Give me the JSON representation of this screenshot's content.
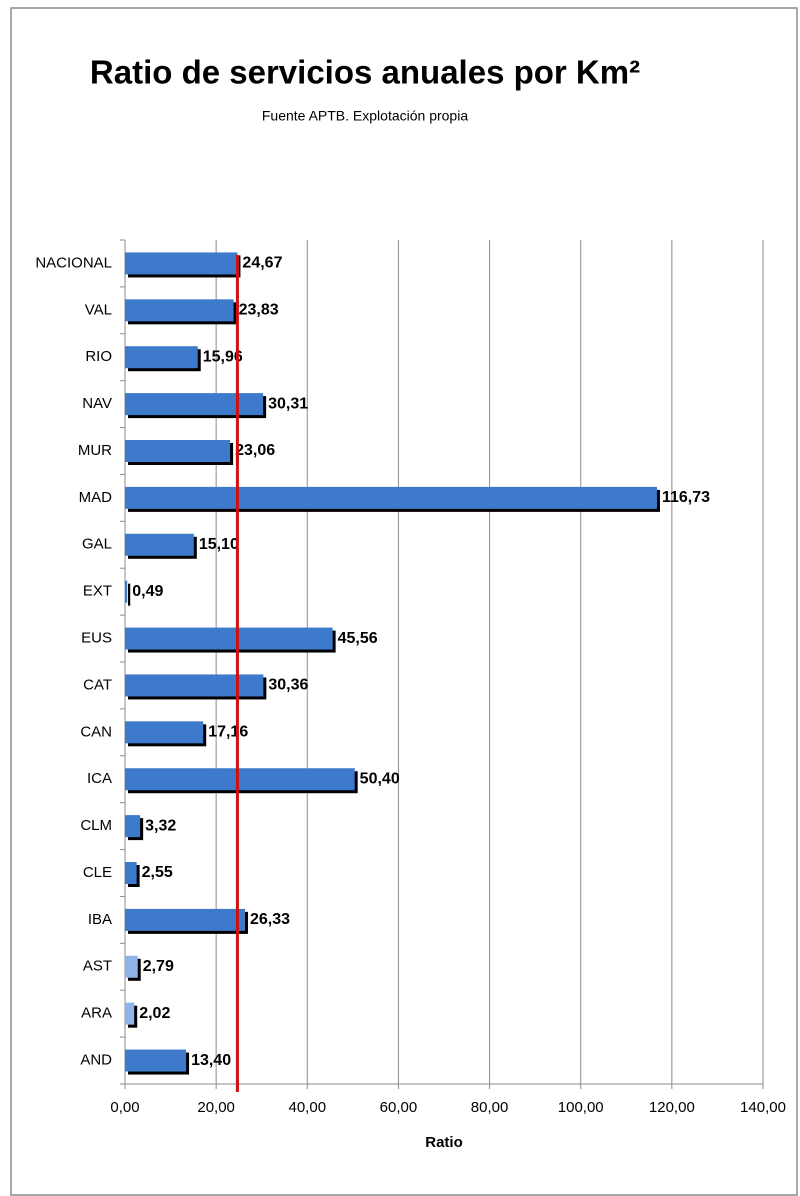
{
  "chart_data": {
    "type": "barh",
    "title": "Ratio de servicios anuales por Km²",
    "subtitle": "Fuente APTB. Explotación propia",
    "x_label": "Ratio",
    "categories": [
      "NACIONAL",
      "VAL",
      "RIO",
      "NAV",
      "MUR",
      "MAD",
      "GAL",
      "EXT",
      "EUS",
      "CAT",
      "CAN",
      "ICA",
      "CLM",
      "CLE",
      "IBA",
      "AST",
      "ARA",
      "AND"
    ],
    "values": [
      24.67,
      23.83,
      15.96,
      30.31,
      23.06,
      116.73,
      15.1,
      0.49,
      45.56,
      30.36,
      17.16,
      50.4,
      3.32,
      2.55,
      26.33,
      2.79,
      2.02,
      13.4
    ],
    "value_labels": [
      "24,67",
      "23,83",
      "15,96",
      "30,31",
      "23,06",
      "116,73",
      "15,10",
      "0,49",
      "45,56",
      "30,36",
      "17,16",
      "50,40",
      "3,32",
      "2,55",
      "26,33",
      "2,79",
      "2,02",
      "13,40"
    ],
    "colors": [
      "#3d7acb",
      "#3d7acb",
      "#3d7acb",
      "#3d7acb",
      "#3d7acb",
      "#3d7acb",
      "#3d7acb",
      "#3d7acb",
      "#3d7acb",
      "#3d7acb",
      "#3d7acb",
      "#3d7acb",
      "#3d7acb",
      "#3d7acb",
      "#3d7acb",
      "#8fb4ea",
      "#8fb4ea",
      "#3d7acb"
    ],
    "xlim": [
      0,
      140
    ],
    "xticks": [
      {
        "value": 0,
        "label": "0,00"
      },
      {
        "value": 20,
        "label": "20,00"
      },
      {
        "value": 40,
        "label": "40,00"
      },
      {
        "value": 60,
        "label": "60,00"
      },
      {
        "value": 80,
        "label": "80,00"
      },
      {
        "value": 100,
        "label": "100,00"
      },
      {
        "value": 120,
        "label": "120,00"
      },
      {
        "value": 140,
        "label": "140,00"
      }
    ],
    "grid": true,
    "reference_line": {
      "value": 24.67,
      "color": "#d01010"
    }
  }
}
